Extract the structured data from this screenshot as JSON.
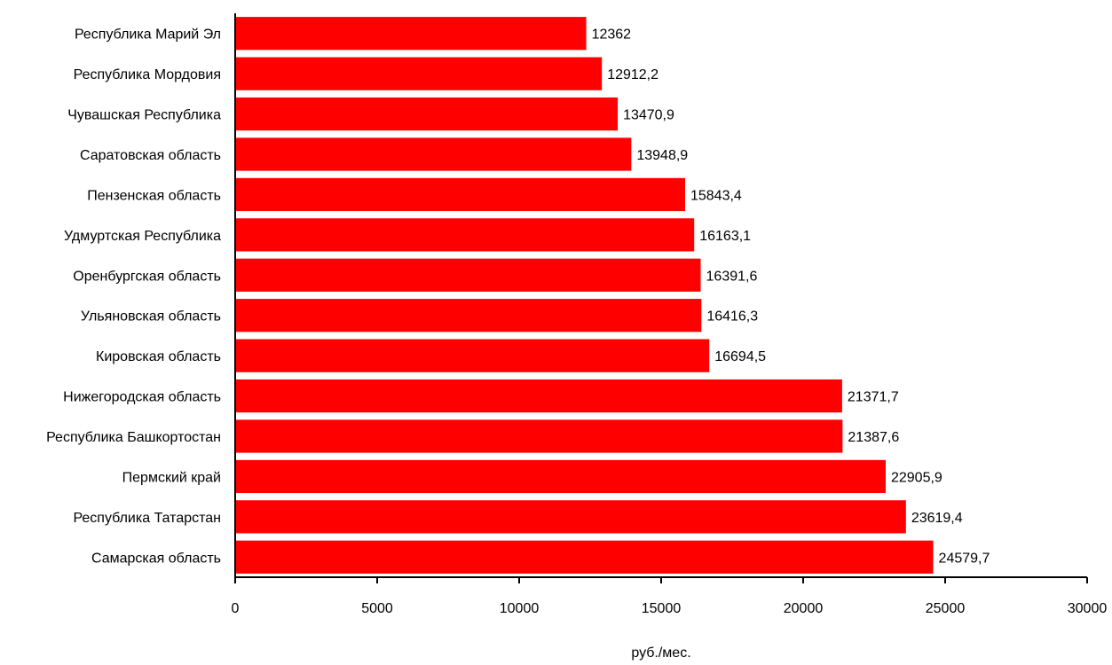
{
  "chart_data": {
    "type": "bar",
    "orientation": "horizontal",
    "categories": [
      "Республика Марий Эл",
      "Республика Мордовия",
      "Чувашская Республика",
      "Саратовская область",
      "Пензенская область",
      "Удмуртская Республика",
      "Оренбургская область",
      "Ульяновская область",
      "Кировская область",
      "Нижегородская область",
      "Республика Башкортостан",
      "Пермский край",
      "Республика Татарстан",
      "Самарская область"
    ],
    "values": [
      12362,
      12912.2,
      13470.9,
      13948.9,
      15843.4,
      16163.1,
      16391.6,
      16416.3,
      16694.5,
      21371.7,
      21387.6,
      22905.9,
      23619.4,
      24579.7
    ],
    "value_labels": [
      "12362",
      "12912,2",
      "13470,9",
      "13948,9",
      "15843,4",
      "16163,1",
      "16391,6",
      "16416,3",
      "16694,5",
      "21371,7",
      "21387,6",
      "22905,9",
      "23619,4",
      "24579,7"
    ],
    "xlabel": "руб./мес.",
    "ylabel": "",
    "title": "",
    "xlim": [
      0,
      30000
    ],
    "xticks": [
      0,
      5000,
      10000,
      15000,
      20000,
      25000,
      30000
    ],
    "xtick_labels": [
      "0",
      "5000",
      "10000",
      "15000",
      "20000",
      "25000",
      "30000"
    ],
    "grid": false,
    "legend": "none",
    "bar_color": "#ff0000"
  }
}
